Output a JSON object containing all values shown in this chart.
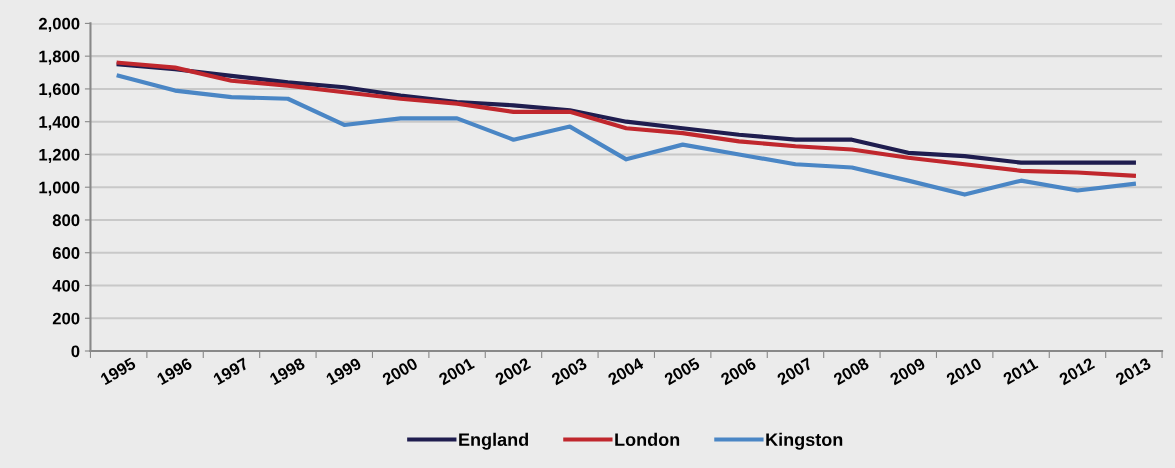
{
  "chart_data": {
    "type": "line",
    "categories": [
      "1995",
      "1996",
      "1997",
      "1998",
      "1999",
      "2000",
      "2001",
      "2002",
      "2003",
      "2004",
      "2005",
      "2006",
      "2007",
      "2008",
      "2009",
      "2010",
      "2011",
      "2012",
      "2013"
    ],
    "series": [
      {
        "name": "England",
        "color": "#1f1d4f",
        "values": [
          1750,
          1720,
          1680,
          1640,
          1610,
          1560,
          1520,
          1500,
          1470,
          1400,
          1360,
          1320,
          1290,
          1290,
          1210,
          1190,
          1150,
          1150,
          1150
        ]
      },
      {
        "name": "London",
        "color": "#c0272d",
        "values": [
          1760,
          1730,
          1650,
          1620,
          1580,
          1540,
          1510,
          1460,
          1460,
          1360,
          1330,
          1280,
          1250,
          1230,
          1180,
          1140,
          1100,
          1090,
          1070
        ]
      },
      {
        "name": "Kingston",
        "color": "#4a86c5",
        "values": [
          1680,
          1590,
          1550,
          1540,
          1380,
          1420,
          1420,
          1290,
          1370,
          1170,
          1260,
          1200,
          1140,
          1120,
          1040,
          955,
          1040,
          980,
          1020
        ]
      }
    ],
    "ylim": [
      0,
      2000
    ],
    "yticks": [
      0,
      200,
      400,
      600,
      800,
      {
        "value": 1000,
        "label": "1,000"
      },
      {
        "value": 1200,
        "label": "1,200"
      },
      {
        "value": 1400,
        "label": "1,400"
      },
      {
        "value": 1600,
        "label": "1,600"
      },
      {
        "value": 1800,
        "label": "1,800"
      },
      {
        "value": 2000,
        "label": "2,000"
      }
    ],
    "grid": "y",
    "legend": "bottom",
    "marker": "none",
    "line_style": "solid"
  }
}
